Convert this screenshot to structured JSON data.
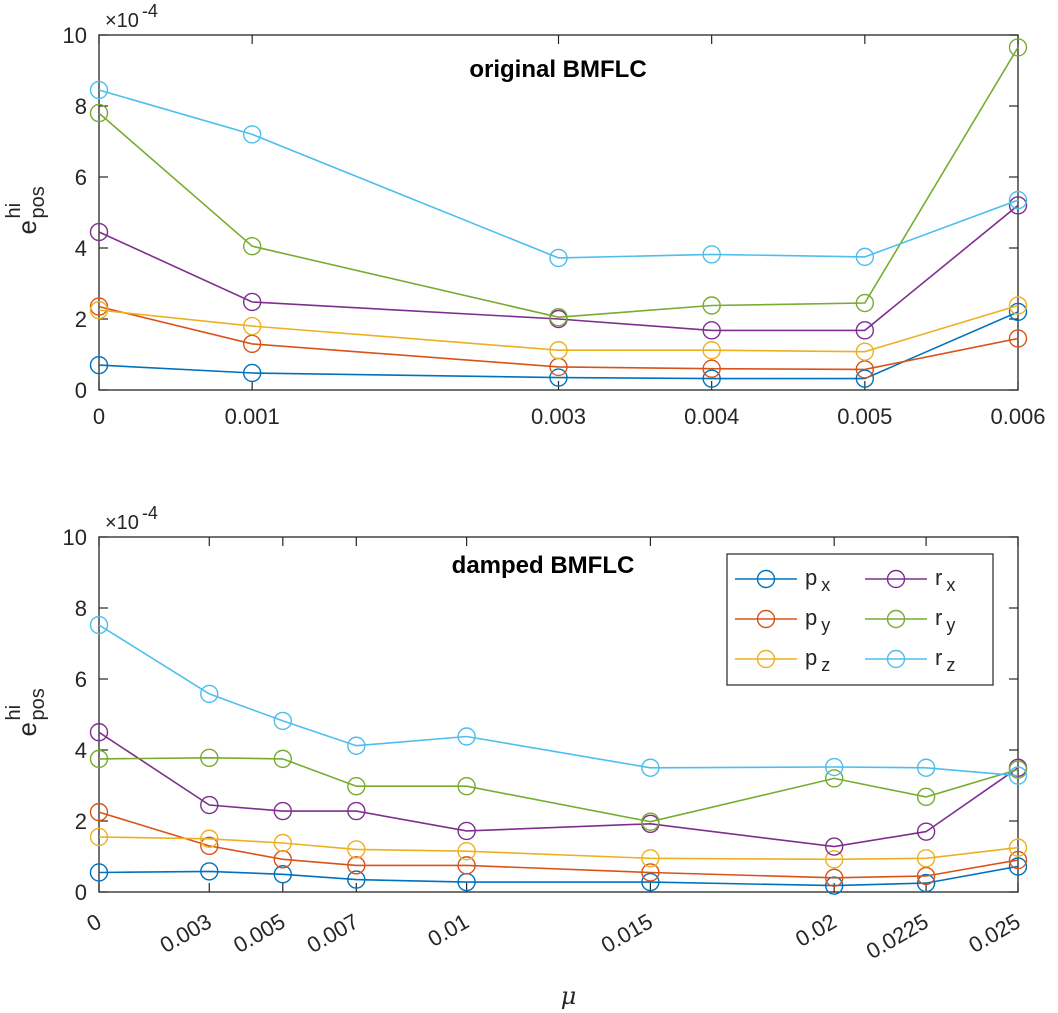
{
  "chart_data": [
    {
      "type": "line",
      "title": "original BMFLC",
      "xlabel": "",
      "ylabel": "e",
      "ylabel_sup": "hi",
      "ylabel_sub": "pos",
      "y_exponent_label": "×10",
      "y_exponent": "-4",
      "ylim": [
        0,
        10
      ],
      "y_ticks": [
        0,
        2,
        4,
        6,
        8,
        10
      ],
      "y_tick_labels": [
        "0",
        "2",
        "4",
        "6",
        "8",
        "10"
      ],
      "xlim": [
        0,
        0.006
      ],
      "x": [
        0,
        0.001,
        0.003,
        0.004,
        0.005,
        0.006
      ],
      "x_tick_labels": [
        "0",
        "0.001",
        "0.003",
        "0.004",
        "0.005",
        "0.006"
      ],
      "x_tick_rotation": 0,
      "series": [
        {
          "name": "p",
          "sub": "x",
          "color": "#0072BD",
          "values": [
            0.7,
            0.48,
            0.35,
            0.32,
            0.32,
            2.2
          ]
        },
        {
          "name": "p",
          "sub": "y",
          "color": "#D95319",
          "values": [
            2.35,
            1.3,
            0.65,
            0.6,
            0.58,
            1.45
          ]
        },
        {
          "name": "p",
          "sub": "z",
          "color": "#EDB120",
          "values": [
            2.25,
            1.8,
            1.12,
            1.12,
            1.08,
            2.38
          ]
        },
        {
          "name": "r",
          "sub": "x",
          "color": "#7E2F8E",
          "values": [
            4.45,
            2.48,
            2.0,
            1.68,
            1.68,
            5.2
          ]
        },
        {
          "name": "r",
          "sub": "y",
          "color": "#77AC30",
          "values": [
            7.8,
            4.05,
            2.05,
            2.38,
            2.45,
            9.65
          ]
        },
        {
          "name": "r",
          "sub": "z",
          "color": "#4DBEEE",
          "values": [
            8.45,
            7.2,
            3.72,
            3.82,
            3.75,
            5.35
          ]
        }
      ]
    },
    {
      "type": "line",
      "title": "damped BMFLC",
      "xlabel": "μ",
      "ylabel": "e",
      "ylabel_sup": "hi",
      "ylabel_sub": "pos",
      "y_exponent_label": "×10",
      "y_exponent": "-4",
      "ylim": [
        0,
        10
      ],
      "y_ticks": [
        0,
        2,
        4,
        6,
        8,
        10
      ],
      "y_tick_labels": [
        "0",
        "2",
        "4",
        "6",
        "8",
        "10"
      ],
      "xlim": [
        0,
        0.025
      ],
      "x": [
        0,
        0.003,
        0.005,
        0.007,
        0.01,
        0.015,
        0.02,
        0.0225,
        0.025
      ],
      "x_tick_labels": [
        "0",
        "0.003",
        "0.005",
        "0.007",
        "0.01",
        "0.015",
        "0.02",
        "0.0225",
        "0.025"
      ],
      "x_tick_rotation": -30,
      "legend_position": "top-right",
      "series": [
        {
          "name": "p",
          "sub": "x",
          "color": "#0072BD",
          "values": [
            0.55,
            0.58,
            0.5,
            0.35,
            0.28,
            0.28,
            0.18,
            0.25,
            0.72
          ]
        },
        {
          "name": "p",
          "sub": "y",
          "color": "#D95319",
          "values": [
            2.25,
            1.3,
            0.92,
            0.75,
            0.75,
            0.55,
            0.4,
            0.45,
            0.9
          ]
        },
        {
          "name": "p",
          "sub": "z",
          "color": "#EDB120",
          "values": [
            1.55,
            1.5,
            1.38,
            1.2,
            1.15,
            0.95,
            0.92,
            0.95,
            1.25
          ]
        },
        {
          "name": "r",
          "sub": "x",
          "color": "#7E2F8E",
          "values": [
            4.5,
            2.45,
            2.28,
            2.28,
            1.72,
            1.92,
            1.28,
            1.7,
            3.5
          ]
        },
        {
          "name": "r",
          "sub": "y",
          "color": "#77AC30",
          "values": [
            3.75,
            3.78,
            3.75,
            2.98,
            2.98,
            1.98,
            3.2,
            2.68,
            3.45
          ]
        },
        {
          "name": "r",
          "sub": "z",
          "color": "#4DBEEE",
          "values": [
            7.52,
            5.58,
            4.82,
            4.12,
            4.38,
            3.5,
            3.52,
            3.5,
            3.28
          ]
        }
      ]
    }
  ]
}
